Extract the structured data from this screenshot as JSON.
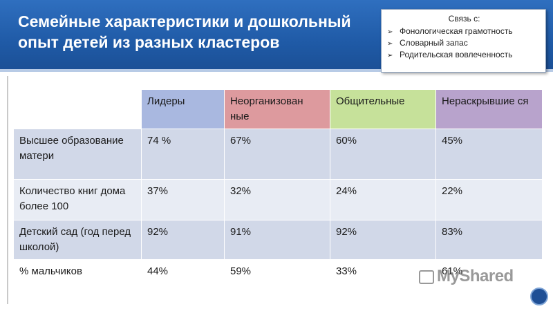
{
  "title": "Семейные характеристики и дошкольный опыт детей из разных кластеров",
  "callout": {
    "heading": "Связь с:",
    "items": [
      "Фонологическая грамотность",
      "Словарный запас",
      "Родительская вовлеченность"
    ]
  },
  "table": {
    "columns": [
      "Лидеры",
      "Неорганизован ные",
      "Общительные",
      "Нераскрывшие ся"
    ],
    "rows": [
      {
        "label": "Высшее образование матери",
        "values": [
          "74 %",
          "67%",
          "60%",
          "45%"
        ]
      },
      {
        "label": "Количество книг дома более 100",
        "values": [
          "37%",
          "32%",
          "24%",
          "22%"
        ]
      },
      {
        "label": "Детский сад (год перед школой)",
        "values": [
          "92%",
          "91%",
          "92%",
          "83%"
        ]
      },
      {
        "label": "% мальчиков",
        "values": [
          "44%",
          "59%",
          "33%",
          "61%"
        ]
      }
    ]
  },
  "watermark": "MyShared",
  "colors": {
    "header_blue": "#1f5aa6",
    "col_leaders": "#a9b8e0",
    "col_disorganized": "#dd9a9e",
    "col_sociable": "#c6e19a",
    "col_unrevealed": "#b8a3cc"
  }
}
